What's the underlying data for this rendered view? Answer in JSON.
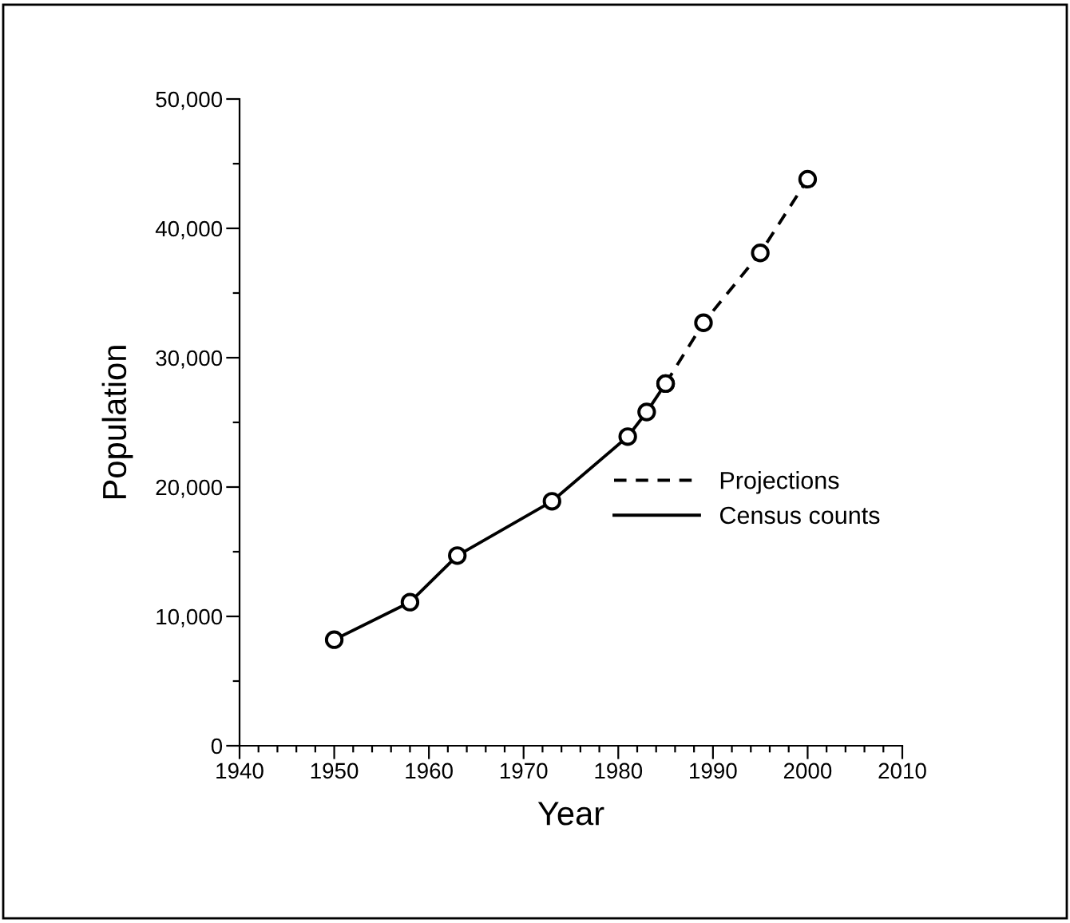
{
  "chart_data": {
    "type": "line",
    "xlabel": "Year",
    "ylabel": "Population",
    "series": [
      {
        "name": "Projections",
        "color": "#000000",
        "line_style": "dashed",
        "x": [
          1985,
          1989,
          1995,
          2000
        ],
        "values": [
          28000,
          32700,
          38100,
          43800
        ]
      },
      {
        "name": "Census counts",
        "color": "#000000",
        "line_style": "solid",
        "x": [
          1950,
          1958,
          1963,
          1973,
          1981,
          1983,
          1985
        ],
        "values": [
          8200,
          11100,
          14700,
          18900,
          23900,
          25800,
          28000
        ]
      }
    ],
    "marker": "circle",
    "legend": "right",
    "grid": false,
    "xlim": [
      1940,
      2010
    ],
    "ylim": [
      0,
      50000
    ],
    "xticks": [
      1940,
      {
        "value": 1942,
        "label": null
      },
      {
        "value": 1944,
        "label": null
      },
      {
        "value": 1946,
        "label": null
      },
      {
        "value": 1948,
        "label": null
      },
      1950,
      {
        "value": 1952,
        "label": null
      },
      {
        "value": 1954,
        "label": null
      },
      {
        "value": 1956,
        "label": null
      },
      {
        "value": 1958,
        "label": null
      },
      1960,
      {
        "value": 1962,
        "label": null
      },
      {
        "value": 1964,
        "label": null
      },
      {
        "value": 1966,
        "label": null
      },
      {
        "value": 1968,
        "label": null
      },
      1970,
      {
        "value": 1972,
        "label": null
      },
      {
        "value": 1974,
        "label": null
      },
      {
        "value": 1976,
        "label": null
      },
      {
        "value": 1978,
        "label": null
      },
      1980,
      {
        "value": 1982,
        "label": null
      },
      {
        "value": 1984,
        "label": null
      },
      {
        "value": 1986,
        "label": null
      },
      {
        "value": 1988,
        "label": null
      },
      1990,
      {
        "value": 1992,
        "label": null
      },
      {
        "value": 1994,
        "label": null
      },
      {
        "value": 1996,
        "label": null
      },
      {
        "value": 1998,
        "label": null
      },
      2000,
      {
        "value": 2002,
        "label": null
      },
      {
        "value": 2004,
        "label": null
      },
      {
        "value": 2006,
        "label": null
      },
      {
        "value": 2008,
        "label": null
      },
      2010
    ],
    "yticks": [
      {
        "value": 0,
        "label": "0"
      },
      {
        "value": 5000,
        "label": null
      },
      {
        "value": 10000,
        "label": "10,000"
      },
      {
        "value": 15000,
        "label": null
      },
      {
        "value": 20000,
        "label": "20,000"
      },
      {
        "value": 25000,
        "label": null
      },
      {
        "value": 30000,
        "label": "30,000"
      },
      {
        "value": 35000,
        "label": null
      },
      {
        "value": 40000,
        "label": "40,000"
      },
      {
        "value": 45000,
        "label": null
      },
      {
        "value": 50000,
        "label": "50,000"
      }
    ]
  }
}
